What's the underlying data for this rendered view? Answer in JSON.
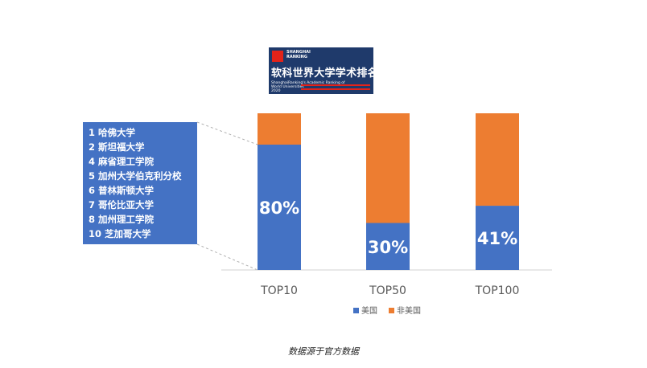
{
  "logo": {
    "brand_line1": "SHANGHAI",
    "brand_line2": "RANKING",
    "title": "软科世界大学学术排名",
    "subtitle_line1": "ShanghaiRanking's Academic Ranking of",
    "subtitle_line2": "World Universities",
    "year": "2020",
    "colors": {
      "background": "#1f3a6b",
      "accent": "#e2231a"
    }
  },
  "top10_list": [
    {
      "rank": "1",
      "name": "哈佛大学"
    },
    {
      "rank": "2",
      "name": "斯坦福大学"
    },
    {
      "rank": "4",
      "name": "麻省理工学院"
    },
    {
      "rank": "5",
      "name": "加州大学伯克利分校"
    },
    {
      "rank": "6",
      "name": "普林斯顿大学"
    },
    {
      "rank": "7",
      "name": "哥伦比亚大学"
    },
    {
      "rank": "8",
      "name": "加州理工学院"
    },
    {
      "rank": "10",
      "name": "芝加哥大学"
    }
  ],
  "chart_data": {
    "type": "bar",
    "stacked": true,
    "normalized": true,
    "categories": [
      "TOP10",
      "TOP50",
      "TOP100"
    ],
    "series": [
      {
        "name": "美国",
        "values": [
          80,
          30,
          41
        ],
        "color": "#4472c4"
      },
      {
        "name": "非美国",
        "values": [
          20,
          70,
          59
        ],
        "color": "#ed7d31"
      }
    ],
    "data_labels": [
      "80%",
      "30%",
      "41%"
    ],
    "ylim": [
      0,
      100
    ],
    "grid": false,
    "legend_position": "bottom"
  },
  "source_note": "数据源于官方数据"
}
